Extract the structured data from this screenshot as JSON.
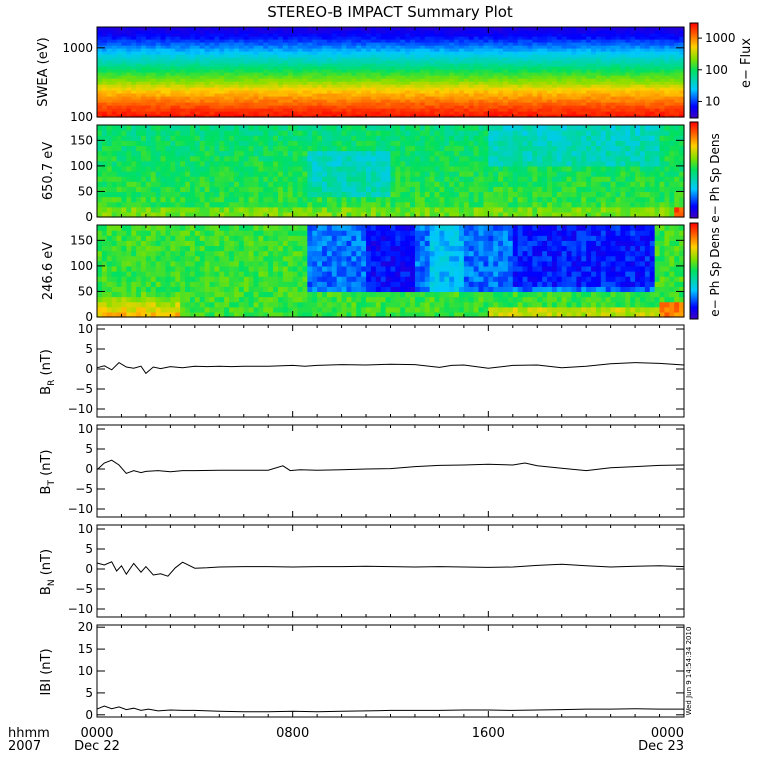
{
  "title": "STEREO-B IMPACT Summary Plot",
  "footer": {
    "time_label": "hhmm",
    "year_label": "2007",
    "ticks": [
      {
        "time": "0000",
        "date": "Dec 22"
      },
      {
        "time": "0800",
        "date": ""
      },
      {
        "time": "1600",
        "date": ""
      },
      {
        "time": "0000",
        "date": "Dec 23"
      }
    ],
    "timestamp": "Wed Jun 9 14:54:34 2010"
  },
  "colors": {
    "line": "#000000",
    "frame": "#000000",
    "background": "#ffffff"
  },
  "chart_data": [
    {
      "type": "heatmap",
      "id": "swea",
      "ylabel": "SWEA (eV)",
      "y_scale": "log",
      "ylim": [
        100,
        2000
      ],
      "yticks": [
        {
          "value": 1000,
          "label": "1000"
        },
        {
          "value": 100,
          "label": "100"
        }
      ],
      "colorbar": {
        "label": "e− Flux",
        "scale": "log",
        "range": [
          3,
          3000
        ],
        "ticks": [
          {
            "value": 1000,
            "label": "1000"
          },
          {
            "value": 100,
            "label": "100"
          },
          {
            "value": 10,
            "label": "10"
          }
        ]
      },
      "description_profile": {
        "y_energy_eV": [
          100,
          130,
          180,
          250,
          330,
          450,
          600,
          800,
          1100,
          1500,
          2000
        ],
        "color_level": [
          0.98,
          0.93,
          0.84,
          0.75,
          0.63,
          0.53,
          0.42,
          0.33,
          0.22,
          0.12,
          0.06
        ]
      }
    },
    {
      "type": "heatmap",
      "id": "pad-650",
      "ylabel": "650.7 eV",
      "ylim": [
        0,
        180
      ],
      "yticks": [
        {
          "value": 150,
          "label": "150"
        },
        {
          "value": 100,
          "label": "100"
        },
        {
          "value": 50,
          "label": "50"
        },
        {
          "value": 0,
          "label": "0"
        }
      ],
      "colorbar": {
        "label": "e− Ph Sp Dens"
      }
    },
    {
      "type": "heatmap",
      "id": "pad-246",
      "ylabel": "246.6 eV",
      "ylim": [
        0,
        180
      ],
      "yticks": [
        {
          "value": 150,
          "label": "150"
        },
        {
          "value": 100,
          "label": "100"
        },
        {
          "value": 50,
          "label": "50"
        },
        {
          "value": 0,
          "label": "0"
        }
      ],
      "colorbar": {
        "label": "e− Ph Sp Dens"
      }
    },
    {
      "type": "line",
      "id": "br",
      "ylabel_main": "B",
      "ylabel_sub": "R",
      "ylabel_unit": " (nT)",
      "ylim": [
        -12,
        11
      ],
      "yticks": [
        {
          "value": 10,
          "label": "10"
        },
        {
          "value": 5,
          "label": "5"
        },
        {
          "value": 0,
          "label": "0"
        },
        {
          "value": -5,
          "label": "−5"
        },
        {
          "value": -10,
          "label": "−10"
        }
      ],
      "x_hours": [
        0,
        0.3,
        0.6,
        0.9,
        1.2,
        1.5,
        1.8,
        2.0,
        2.3,
        2.6,
        3,
        3.5,
        4,
        4.5,
        5,
        5.5,
        6,
        7,
        8,
        8.5,
        9,
        9.5,
        10,
        11,
        12,
        13,
        14,
        14.5,
        15,
        16,
        17,
        18,
        19,
        20,
        21,
        22,
        23,
        24
      ],
      "values": [
        0.3,
        0.8,
        -0.2,
        1.6,
        0.5,
        0.2,
        0.7,
        -1.1,
        0.5,
        0.1,
        0.6,
        0.3,
        0.7,
        0.6,
        0.7,
        0.6,
        0.7,
        0.7,
        0.9,
        0.7,
        0.9,
        1.0,
        1.1,
        1.0,
        1.2,
        1.1,
        0.4,
        0.9,
        1.0,
        0.2,
        0.9,
        1.0,
        0.3,
        0.7,
        1.3,
        1.6,
        1.4,
        1.0
      ]
    },
    {
      "type": "line",
      "id": "bt",
      "ylabel_main": "B",
      "ylabel_sub": "T",
      "ylabel_unit": " (nT)",
      "ylim": [
        -12,
        11
      ],
      "yticks": [
        {
          "value": 10,
          "label": "10"
        },
        {
          "value": 5,
          "label": "5"
        },
        {
          "value": 0,
          "label": "0"
        },
        {
          "value": -5,
          "label": "−5"
        },
        {
          "value": -10,
          "label": "−10"
        }
      ],
      "x_hours": [
        0,
        0.3,
        0.6,
        0.9,
        1.2,
        1.5,
        1.8,
        2.0,
        2.5,
        3,
        3.5,
        4,
        5,
        6,
        7,
        7.6,
        7.9,
        8.3,
        9,
        10,
        11,
        12,
        13,
        14,
        15,
        16,
        17,
        17.5,
        18,
        19,
        20,
        21,
        22,
        23,
        24
      ],
      "values": [
        -0.2,
        1.5,
        2.2,
        1.0,
        -1.1,
        -0.4,
        -0.9,
        -0.6,
        -0.4,
        -0.7,
        -0.4,
        -0.4,
        -0.3,
        -0.3,
        -0.3,
        0.8,
        -0.4,
        -0.2,
        -0.3,
        -0.2,
        0.0,
        0.1,
        0.6,
        0.9,
        1.0,
        1.2,
        1.0,
        1.5,
        0.8,
        0.2,
        -0.4,
        0.3,
        0.6,
        0.9,
        1.0
      ]
    },
    {
      "type": "line",
      "id": "bn",
      "ylabel_main": "B",
      "ylabel_sub": "N",
      "ylabel_unit": " (nT)",
      "ylim": [
        -12,
        11
      ],
      "yticks": [
        {
          "value": 10,
          "label": "10"
        },
        {
          "value": 5,
          "label": "5"
        },
        {
          "value": 0,
          "label": "0"
        },
        {
          "value": -5,
          "label": "−5"
        },
        {
          "value": -10,
          "label": "−10"
        }
      ],
      "x_hours": [
        0,
        0.3,
        0.6,
        0.8,
        1.0,
        1.2,
        1.5,
        1.8,
        2.0,
        2.3,
        2.6,
        2.9,
        3.2,
        3.5,
        4.0,
        4.5,
        5,
        6,
        7,
        8,
        9,
        10,
        11,
        12,
        13,
        14,
        15,
        16,
        17,
        18,
        19,
        20,
        21,
        22,
        23,
        24
      ],
      "values": [
        1.5,
        1.0,
        1.8,
        -0.5,
        0.8,
        -1.3,
        1.4,
        -0.8,
        0.6,
        -1.5,
        -1.2,
        -1.8,
        0.3,
        1.7,
        0.2,
        0.3,
        0.5,
        0.6,
        0.6,
        0.5,
        0.6,
        0.6,
        0.7,
        0.6,
        0.5,
        0.6,
        0.5,
        0.4,
        0.5,
        0.9,
        1.2,
        0.8,
        0.5,
        0.7,
        0.8,
        0.6
      ]
    },
    {
      "type": "line",
      "id": "bmag",
      "ylabel_main": "IBI",
      "ylabel_sub": "",
      "ylabel_unit": " (nT)",
      "ylim": [
        -0.5,
        20.5
      ],
      "yticks": [
        {
          "value": 20,
          "label": "20"
        },
        {
          "value": 15,
          "label": "15"
        },
        {
          "value": 10,
          "label": "10"
        },
        {
          "value": 5,
          "label": "5"
        },
        {
          "value": 0,
          "label": "0"
        }
      ],
      "x_hours": [
        0,
        0.3,
        0.6,
        0.9,
        1.2,
        1.5,
        1.8,
        2.1,
        2.5,
        3,
        3.5,
        4,
        5,
        6,
        7,
        8,
        9,
        10,
        11,
        12,
        13,
        14,
        15,
        16,
        17,
        18,
        19,
        20,
        21,
        22,
        23,
        24
      ],
      "values": [
        1.3,
        2.0,
        1.4,
        1.8,
        1.2,
        1.5,
        1.0,
        1.3,
        0.9,
        1.1,
        1.0,
        1.0,
        0.8,
        0.7,
        0.7,
        0.8,
        0.7,
        0.8,
        0.9,
        1.0,
        1.0,
        1.0,
        1.1,
        1.1,
        1.0,
        1.1,
        1.2,
        1.3,
        1.3,
        1.4,
        1.3,
        1.3
      ]
    }
  ]
}
